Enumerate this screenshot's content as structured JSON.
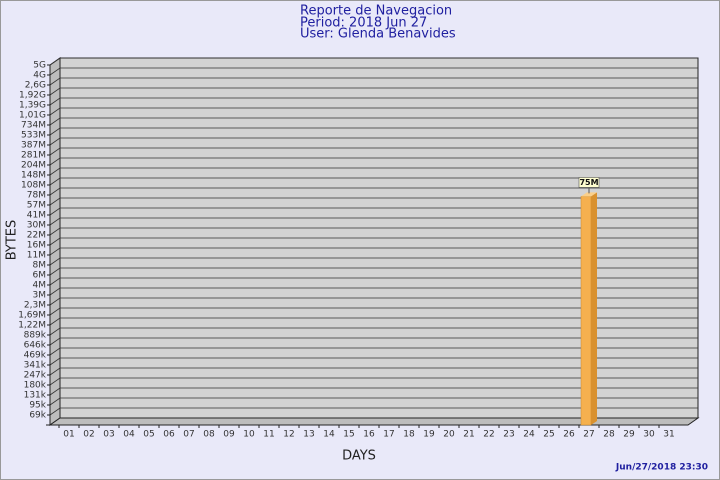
{
  "chart_data": {
    "type": "bar",
    "title": "Reporte de Navegacion",
    "subtitle": [
      "Period: 2018 Jun 27",
      "User: Glenda Benavides"
    ],
    "x_label": "DAYS",
    "y_label": "BYTES",
    "footer": "Jun/27/2018 23:30",
    "categories": [
      "01",
      "02",
      "03",
      "04",
      "05",
      "06",
      "07",
      "08",
      "09",
      "10",
      "11",
      "12",
      "13",
      "14",
      "15",
      "16",
      "17",
      "18",
      "19",
      "20",
      "21",
      "22",
      "23",
      "24",
      "25",
      "26",
      "27",
      "28",
      "29",
      "30",
      "31"
    ],
    "values": [
      null,
      null,
      null,
      null,
      null,
      null,
      null,
      null,
      null,
      null,
      null,
      null,
      null,
      null,
      null,
      null,
      null,
      null,
      null,
      null,
      null,
      null,
      null,
      null,
      null,
      null,
      75000000,
      null,
      null,
      null,
      null
    ],
    "value_labels": [
      null,
      null,
      null,
      null,
      null,
      null,
      null,
      null,
      null,
      null,
      null,
      null,
      null,
      null,
      null,
      null,
      null,
      null,
      null,
      null,
      null,
      null,
      null,
      null,
      null,
      null,
      "75M",
      null,
      null,
      null,
      null
    ],
    "color": "#f5b04f",
    "ylim": [
      0,
      5000000000
    ],
    "yticks": [
      {
        "value": 69000,
        "label": "69k"
      },
      {
        "value": 95000,
        "label": "95k"
      },
      {
        "value": 131000,
        "label": "131k"
      },
      {
        "value": 180000,
        "label": "180k"
      },
      {
        "value": 247000,
        "label": "247k"
      },
      {
        "value": 341000,
        "label": "341k"
      },
      {
        "value": 469000,
        "label": "469k"
      },
      {
        "value": 646000,
        "label": "646k"
      },
      {
        "value": 889000,
        "label": "889k"
      },
      {
        "value": 1220000,
        "label": "1,22M"
      },
      {
        "value": 1690000,
        "label": "1,69M"
      },
      {
        "value": 2300000,
        "label": "2,3M"
      },
      {
        "value": 3000000,
        "label": "3M"
      },
      {
        "value": 4000000,
        "label": "4M"
      },
      {
        "value": 6000000,
        "label": "6M"
      },
      {
        "value": 8000000,
        "label": "8M"
      },
      {
        "value": 11000000,
        "label": "11M"
      },
      {
        "value": 16000000,
        "label": "16M"
      },
      {
        "value": 22000000,
        "label": "22M"
      },
      {
        "value": 30000000,
        "label": "30M"
      },
      {
        "value": 41000000,
        "label": "41M"
      },
      {
        "value": 57000000,
        "label": "57M"
      },
      {
        "value": 78000000,
        "label": "78M"
      },
      {
        "value": 108000000,
        "label": "108M"
      },
      {
        "value": 148000000,
        "label": "148M"
      },
      {
        "value": 204000000,
        "label": "204M"
      },
      {
        "value": 281000000,
        "label": "281M"
      },
      {
        "value": 387000000,
        "label": "387M"
      },
      {
        "value": 533000000,
        "label": "533M"
      },
      {
        "value": 734000000,
        "label": "734M"
      },
      {
        "value": 1010000000,
        "label": "1,01G"
      },
      {
        "value": 1390000000,
        "label": "1,39G"
      },
      {
        "value": 1920000000,
        "label": "1,92G"
      },
      {
        "value": 2600000000,
        "label": "2,6G"
      },
      {
        "value": 4000000000,
        "label": "4G"
      },
      {
        "value": 5000000000,
        "label": "5G"
      }
    ],
    "grid": true
  }
}
